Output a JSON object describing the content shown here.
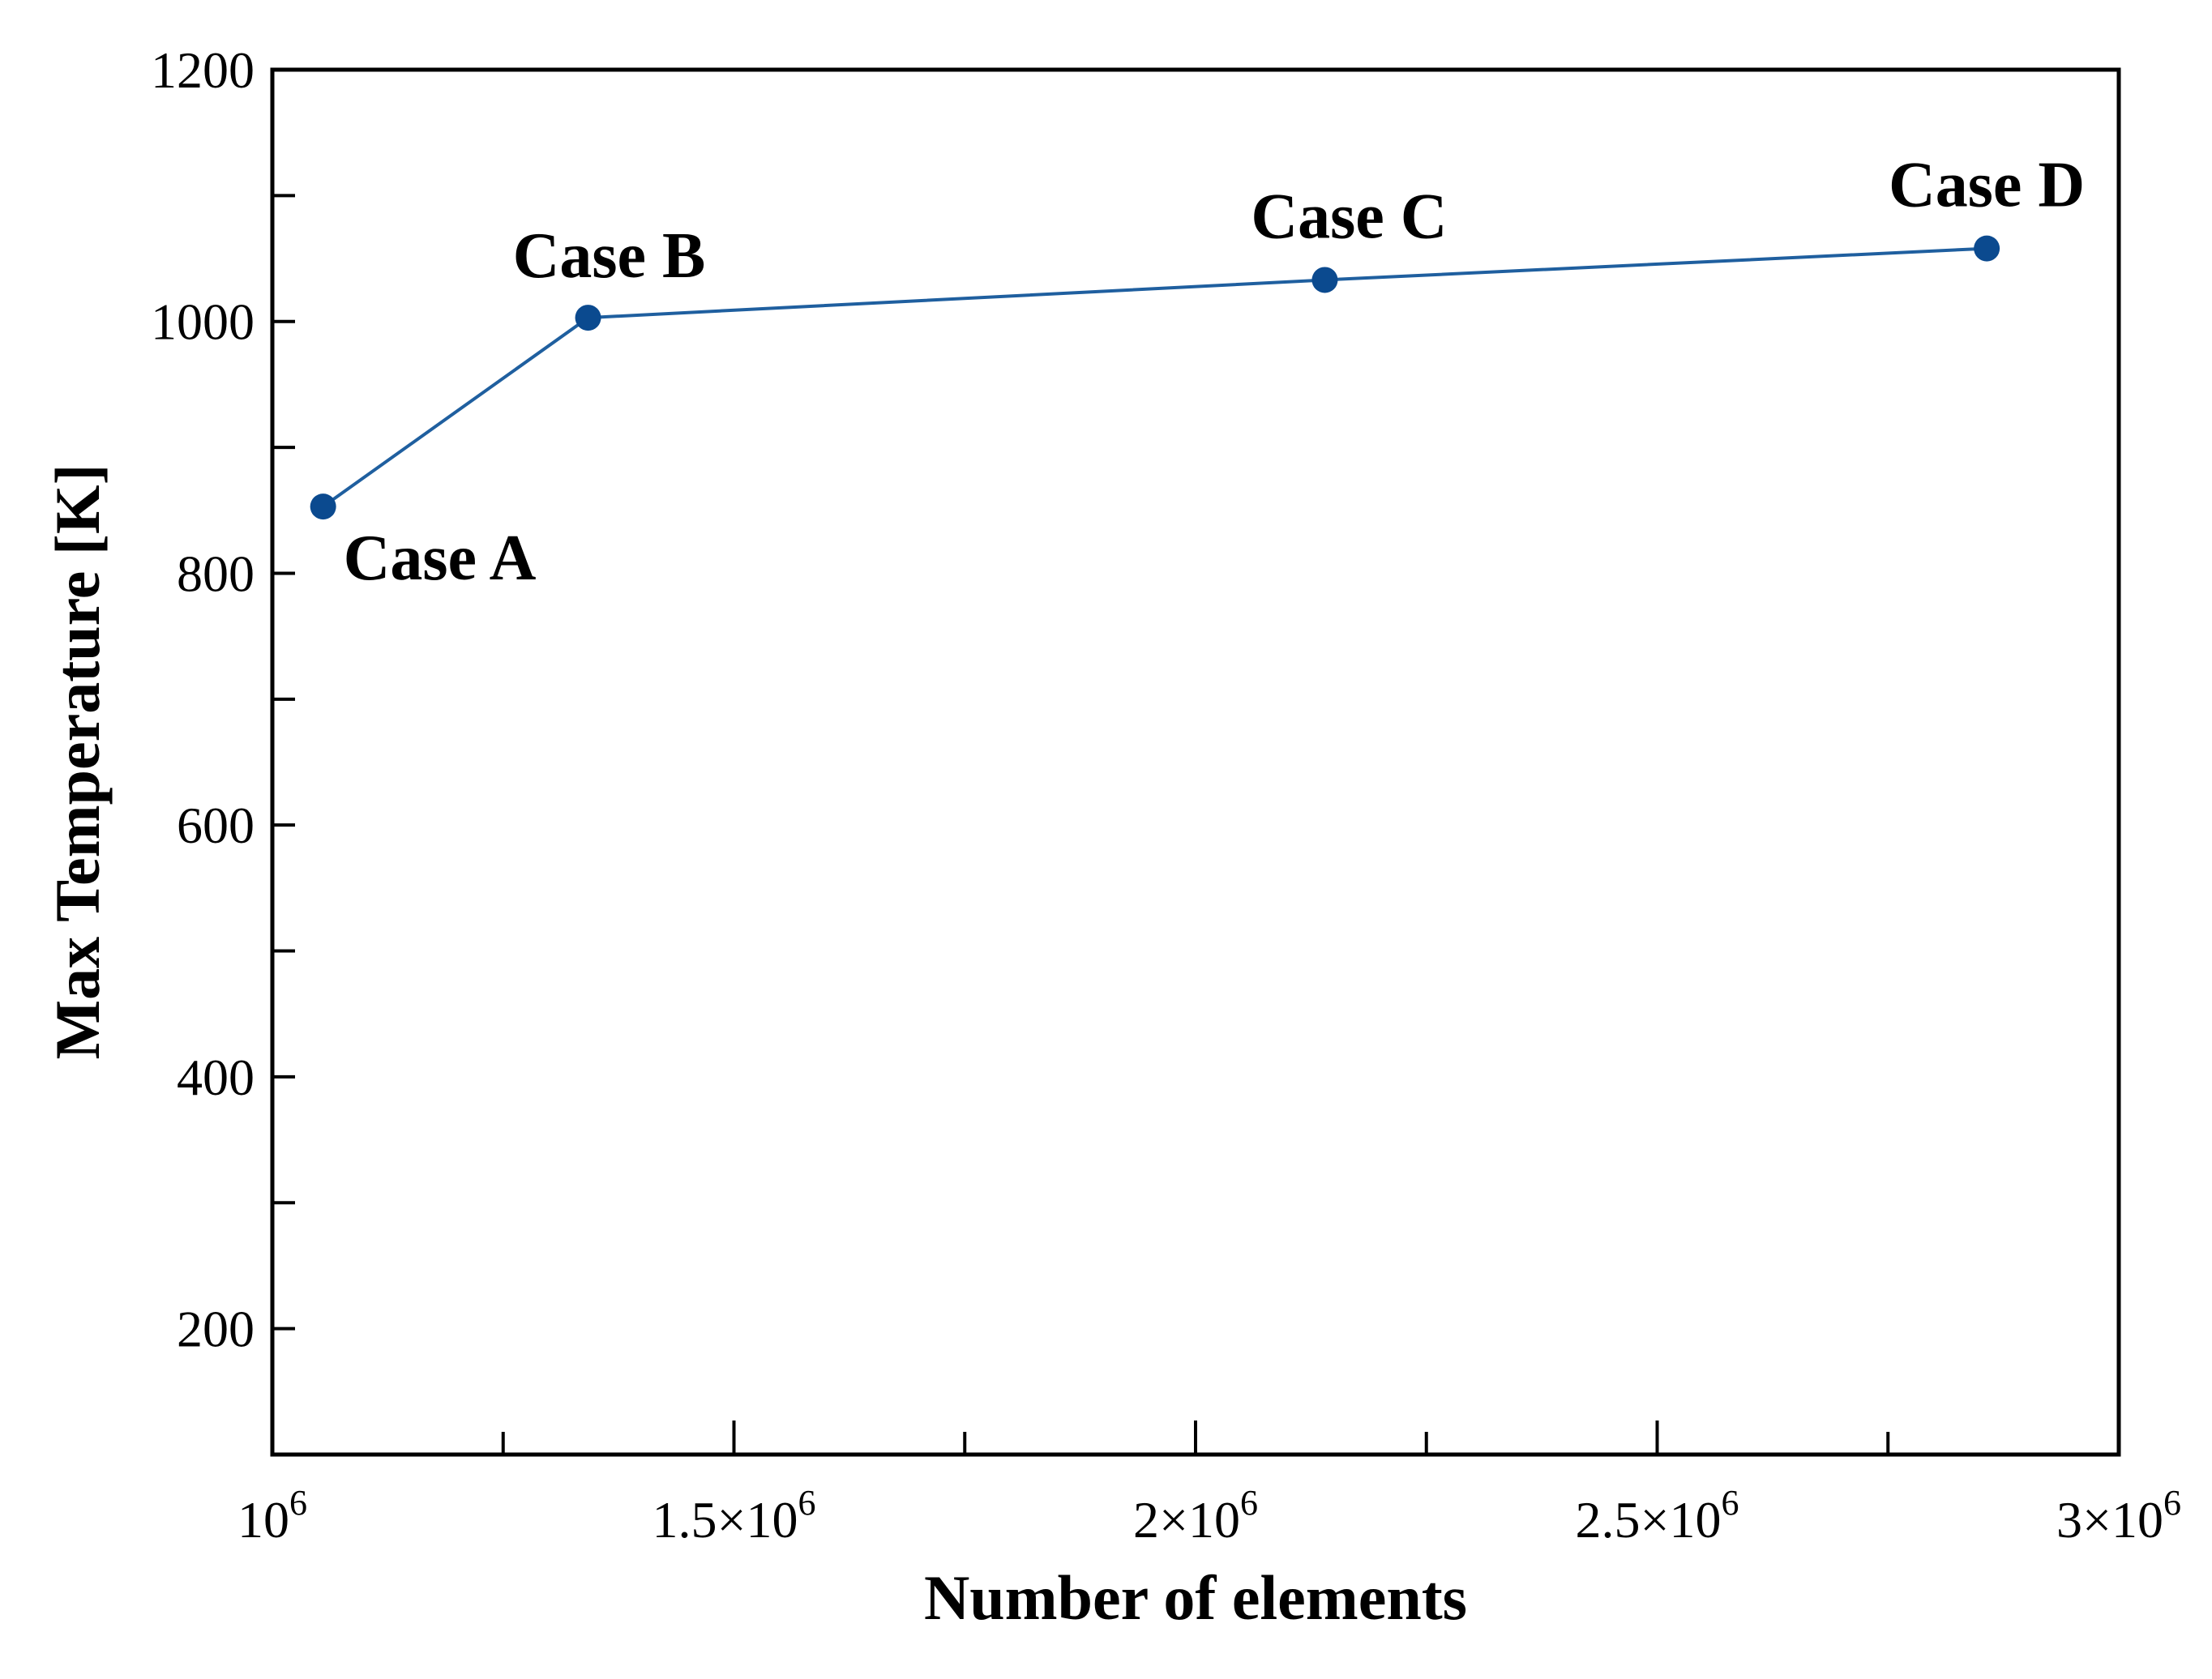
{
  "chart_data": {
    "type": "line",
    "title": "",
    "xlabel": "Number of elements",
    "ylabel": "Max Temperature [K]",
    "xlim": [
      1000000,
      3000000
    ],
    "ylim": [
      100,
      1200
    ],
    "x_ticks": [
      {
        "value": 1000000,
        "base": "10",
        "exp": "6"
      },
      {
        "value": 1500000,
        "base": "1.5×10",
        "exp": "6"
      },
      {
        "value": 2000000,
        "base": "2×10",
        "exp": "6"
      },
      {
        "value": 2500000,
        "base": "2.5×10",
        "exp": "6"
      },
      {
        "value": 3000000,
        "base": "3×10",
        "exp": "6"
      }
    ],
    "x_minor_ticks": [
      1250000,
      1750000,
      2250000,
      2750000
    ],
    "y_ticks": [
      {
        "value": 200,
        "label": "200"
      },
      {
        "value": 400,
        "label": "400"
      },
      {
        "value": 600,
        "label": "600"
      },
      {
        "value": 800,
        "label": "800"
      },
      {
        "value": 1000,
        "label": "1000"
      },
      {
        "value": 1200,
        "label": "1200"
      }
    ],
    "y_minor_ticks": [
      300,
      500,
      700,
      900,
      1100
    ],
    "grid": false,
    "line_color": "#1f5f9f",
    "marker_color": "#0b4a8f",
    "series": [
      {
        "x": [
          1055000,
          1342000,
          2140000,
          2857000
        ],
        "y": [
          853,
          1003,
          1033,
          1058
        ],
        "labels": [
          "Case A",
          "Case B",
          "Case C",
          "Case D"
        ]
      }
    ]
  }
}
